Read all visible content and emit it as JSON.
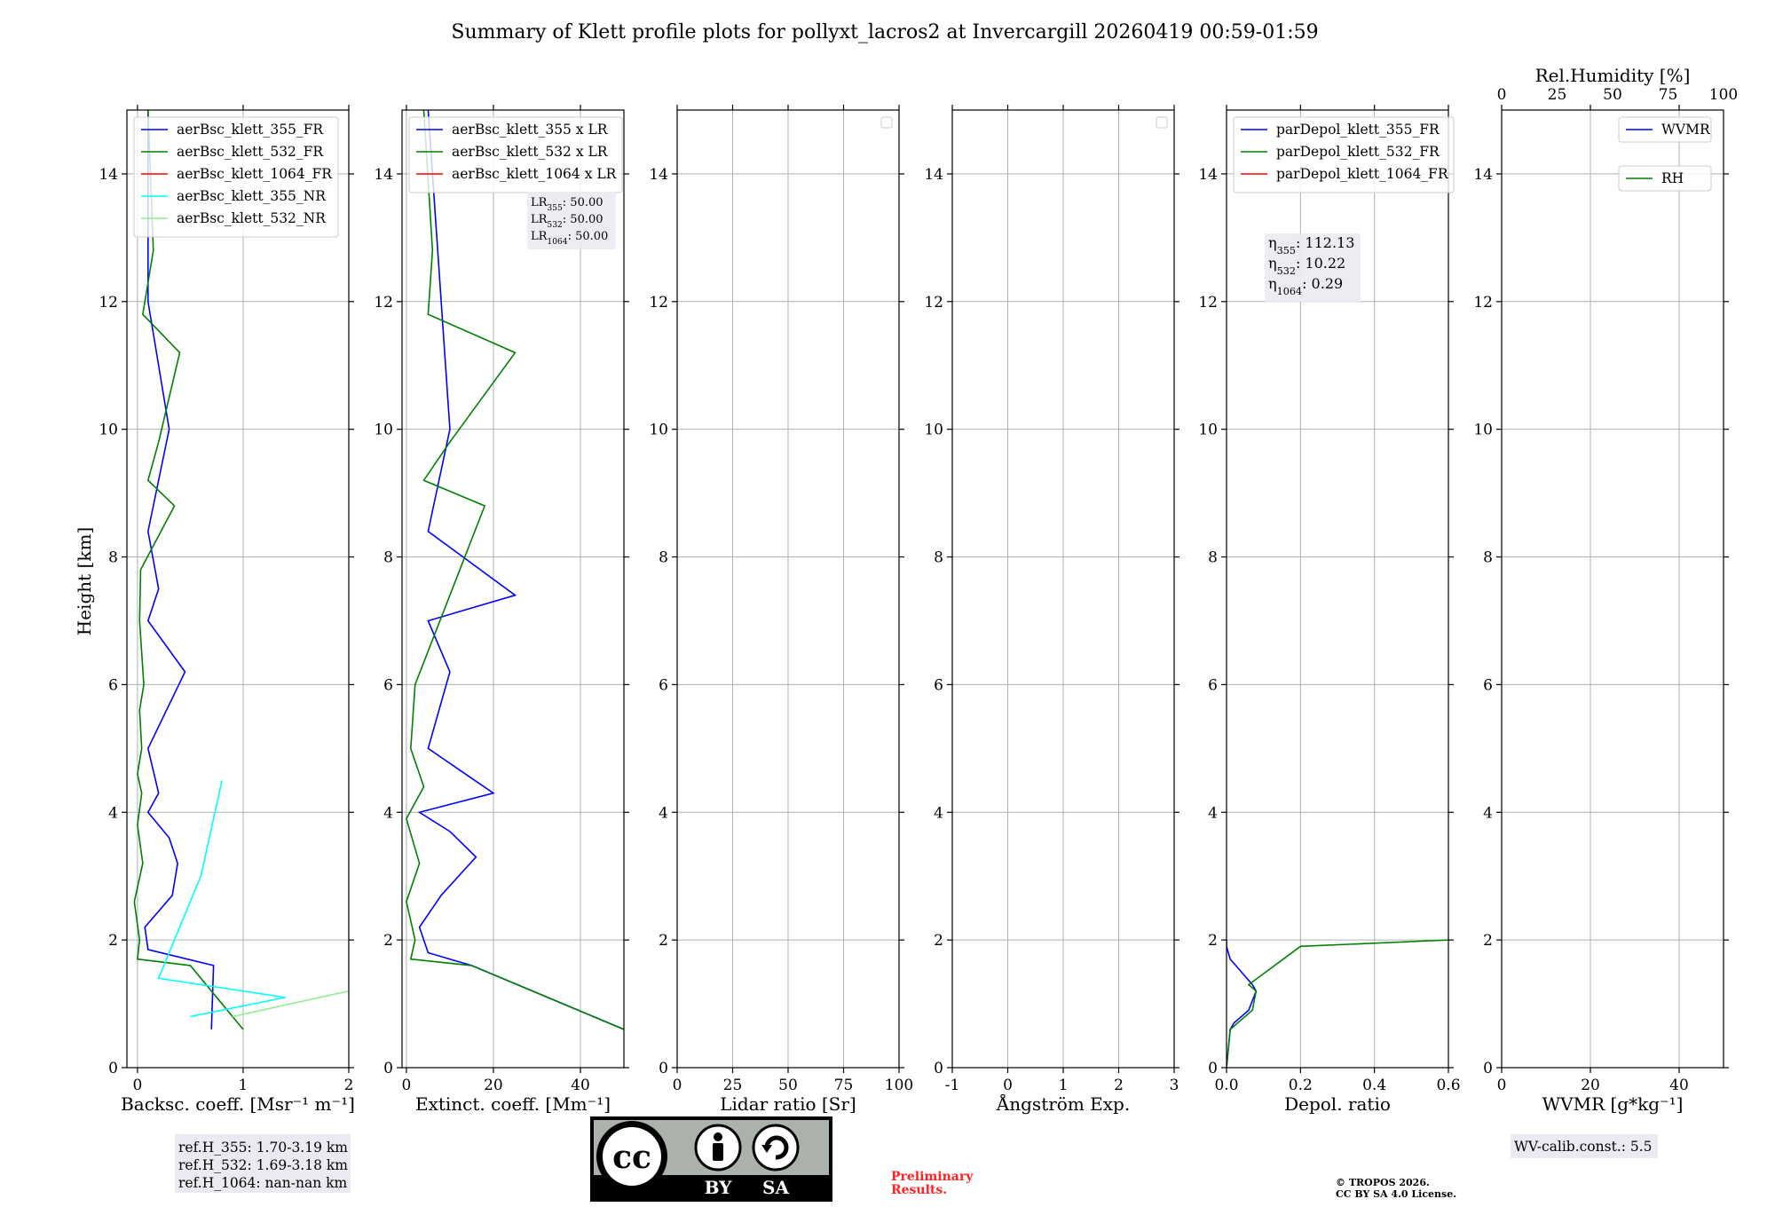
{
  "figure": {
    "title": "Summary of Klett profile plots for pollyxt_lacros2 at Invercargill 20260419 00:59-01:59",
    "ylabel": "Height [km]"
  },
  "chart_data": [
    {
      "id": "bsc",
      "type": "line",
      "xlabel": "Backsc. coeff. [Msr⁻¹ m⁻¹]",
      "xlim": [
        -0.1,
        2
      ],
      "xticks": [
        0,
        1,
        2
      ],
      "ylim": [
        0,
        15
      ],
      "yticks": [
        0,
        2,
        4,
        6,
        8,
        10,
        12,
        14
      ],
      "grid": true,
      "legend_loc": "top-left",
      "legend": [
        {
          "label": "aerBsc_klett_355_FR",
          "color": "#0000ff"
        },
        {
          "label": "aerBsc_klett_532_FR",
          "color": "#008000"
        },
        {
          "label": "aerBsc_klett_1064_FR",
          "color": "#ff0000"
        },
        {
          "label": "aerBsc_klett_355_NR",
          "color": "#00ffff"
        },
        {
          "label": "aerBsc_klett_532_NR",
          "color": "#90ee90"
        }
      ],
      "series": [
        {
          "name": "aerBsc_klett_355_FR",
          "color": "#0000ff",
          "x": [
            0.7,
            0.72,
            0.1,
            0.07,
            0.33,
            0.38,
            0.3,
            0.1,
            0.2,
            0.1,
            0.45,
            0.1,
            0.2,
            0.1,
            0.3,
            0.1,
            0.1
          ],
          "y": [
            0.6,
            1.6,
            1.85,
            2.2,
            2.7,
            3.2,
            3.6,
            4.0,
            4.3,
            5.0,
            6.2,
            7.0,
            7.5,
            8.4,
            10.0,
            12.0,
            15.0
          ]
        },
        {
          "name": "aerBsc_klett_532_FR",
          "color": "#008000",
          "x": [
            1.0,
            0.5,
            0.0,
            0.02,
            -0.03,
            0.05,
            0.0,
            0.04,
            0.0,
            0.04,
            0.02,
            0.06,
            0.02,
            0.03,
            0.35,
            0.1,
            0.2,
            0.4,
            0.05,
            0.15,
            0.1
          ],
          "y": [
            0.6,
            1.6,
            1.7,
            2.0,
            2.6,
            3.2,
            3.8,
            4.3,
            4.6,
            5.0,
            5.6,
            6.0,
            7.0,
            7.8,
            8.8,
            9.2,
            9.8,
            11.2,
            11.8,
            12.8,
            15.0
          ]
        },
        {
          "name": "aerBsc_klett_1064_FR",
          "color": "#ff0000",
          "x": [],
          "y": []
        },
        {
          "name": "aerBsc_klett_355_NR",
          "color": "#00ffff",
          "x": [
            0.5,
            1.4,
            0.2,
            0.6,
            0.8
          ],
          "y": [
            0.8,
            1.1,
            1.4,
            3.0,
            4.5
          ]
        },
        {
          "name": "aerBsc_klett_532_NR",
          "color": "#90ee90",
          "x": [
            0.9,
            2.0,
            2.0,
            2.0,
            2.0
          ],
          "y": [
            0.8,
            1.2,
            2.5,
            3.8,
            4.9
          ]
        }
      ],
      "annotations": []
    },
    {
      "id": "ext",
      "type": "line",
      "xlabel": "Extinct. coeff. [Mm⁻¹]",
      "xlim": [
        -1,
        50
      ],
      "xticks": [
        0,
        20,
        40
      ],
      "ylim": [
        0,
        15
      ],
      "yticks": [
        0,
        2,
        4,
        6,
        8,
        10,
        12,
        14
      ],
      "grid": true,
      "legend_loc": "top-left",
      "legend": [
        {
          "label": "aerBsc_klett_355 x LR",
          "color": "#0000ff"
        },
        {
          "label": "aerBsc_klett_532 x LR",
          "color": "#008000"
        },
        {
          "label": "aerBsc_klett_1064 x LR",
          "color": "#ff0000"
        }
      ],
      "series": [
        {
          "name": "aerBsc_klett_355 x LR",
          "color": "#0000ff",
          "x": [
            50,
            15,
            5,
            3,
            8,
            16,
            10,
            3,
            20,
            5,
            10,
            5,
            25,
            5,
            10,
            5
          ],
          "y": [
            0.6,
            1.6,
            1.8,
            2.2,
            2.7,
            3.3,
            3.7,
            4.0,
            4.3,
            5.0,
            6.2,
            7.0,
            7.4,
            8.4,
            10.0,
            15.0
          ]
        },
        {
          "name": "aerBsc_klett_532 x LR",
          "color": "#008000",
          "x": [
            50,
            15,
            1,
            2,
            0,
            3,
            0,
            4,
            1,
            2,
            18,
            4,
            10,
            25,
            5,
            6,
            4
          ],
          "y": [
            0.6,
            1.6,
            1.7,
            2.0,
            2.6,
            3.2,
            3.9,
            4.4,
            5.0,
            6.0,
            8.8,
            9.2,
            9.8,
            11.2,
            11.8,
            12.8,
            15.0
          ]
        },
        {
          "name": "aerBsc_klett_1064 x LR",
          "color": "#ff0000",
          "x": [],
          "y": []
        }
      ],
      "annotations": [
        {
          "text": "LR355: 50.00"
        },
        {
          "text": "LR532: 50.00"
        },
        {
          "text": "LR1064: 50.00"
        }
      ]
    },
    {
      "id": "lr",
      "type": "line",
      "xlabel": "Lidar ratio [Sr]",
      "xlim": [
        0,
        100
      ],
      "xticks": [
        0,
        25,
        50,
        75,
        100
      ],
      "ylim": [
        0,
        15
      ],
      "yticks": [
        0,
        2,
        4,
        6,
        8,
        10,
        12,
        14
      ],
      "grid": true,
      "legend_loc": "top-right",
      "legend": [],
      "series": [],
      "annotations": []
    },
    {
      "id": "ae",
      "type": "line",
      "xlabel": "Ångström Exp.",
      "xlim": [
        -1,
        3
      ],
      "xticks": [
        -1,
        0,
        1,
        2,
        3
      ],
      "ylim": [
        0,
        15
      ],
      "yticks": [
        0,
        2,
        4,
        6,
        8,
        10,
        12,
        14
      ],
      "grid": true,
      "legend_loc": "top-right",
      "legend": [],
      "series": [],
      "annotations": []
    },
    {
      "id": "dep",
      "type": "line",
      "xlabel": "Depol. ratio",
      "xlim": [
        0,
        0.6
      ],
      "xticks": [
        0.0,
        0.2,
        0.4,
        0.6
      ],
      "ylim": [
        0,
        15
      ],
      "yticks": [
        0,
        2,
        4,
        6,
        8,
        10,
        12,
        14
      ],
      "grid": true,
      "legend_loc": "top-left",
      "legend": [
        {
          "label": "parDepol_klett_355_FR",
          "color": "#0000ff"
        },
        {
          "label": "parDepol_klett_532_FR",
          "color": "#008000"
        },
        {
          "label": "parDepol_klett_1064_FR",
          "color": "#ff0000"
        }
      ],
      "series": [
        {
          "name": "parDepol_klett_355_FR",
          "color": "#0000ff",
          "x": [
            0.0,
            0.01,
            0.02,
            0.06,
            0.08,
            0.07,
            0.01,
            0.0,
            0.0
          ],
          "y": [
            0.0,
            0.6,
            0.7,
            0.9,
            1.2,
            1.3,
            1.7,
            1.9,
            2.0
          ]
        },
        {
          "name": "parDepol_klett_532_FR",
          "color": "#008000",
          "x": [
            0.0,
            0.01,
            0.03,
            0.07,
            0.08,
            0.06,
            0.2,
            0.6
          ],
          "y": [
            0.0,
            0.6,
            0.7,
            0.9,
            1.2,
            1.3,
            1.9,
            2.0
          ]
        },
        {
          "name": "parDepol_klett_1064_FR",
          "color": "#ff0000",
          "x": [],
          "y": []
        }
      ],
      "annotations": [
        {
          "text": "η355: 112.13"
        },
        {
          "text": "η532: 10.22"
        },
        {
          "text": "η1064: 0.29"
        }
      ]
    },
    {
      "id": "wv",
      "type": "line",
      "xlabel": "WVMR [g*kg⁻¹]",
      "xlim": [
        0,
        50
      ],
      "xticks": [
        0,
        20,
        40
      ],
      "ylim": [
        0,
        15
      ],
      "yticks": [
        0,
        2,
        4,
        6,
        8,
        10,
        12,
        14
      ],
      "grid": true,
      "legend_loc": "top-right",
      "top_axis": {
        "label": "Rel.Humidity [%]",
        "lim": [
          0,
          100
        ],
        "ticks": [
          0,
          25,
          50,
          75,
          100
        ]
      },
      "legend": [
        {
          "label": "WVMR",
          "color": "#0000ff"
        },
        {
          "label": "RH",
          "color": "#008000"
        }
      ],
      "series": [],
      "annotations": []
    }
  ],
  "info": {
    "ref_heights": [
      "ref.H_355: 1.70-3.19 km",
      "ref.H_532: 1.69-3.18 km",
      "ref.H_1064: nan-nan km"
    ],
    "preliminary": [
      "Preliminary",
      "Results."
    ],
    "copyright": [
      "© TROPOS 2026.",
      "CC BY SA 4.0 License."
    ],
    "wv_calib": "WV-calib.const.: 5.5"
  },
  "license_badge": {
    "text": [
      "BY",
      "SA"
    ]
  }
}
